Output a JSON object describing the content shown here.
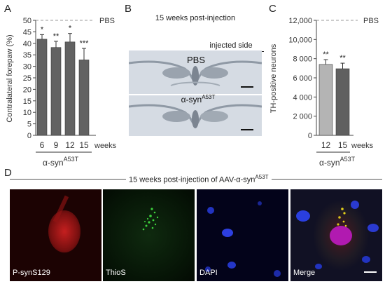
{
  "panel_letters": {
    "a": "A",
    "b": "B",
    "c": "C",
    "d": "D"
  },
  "chart_data": [
    {
      "type": "bar",
      "panel": "A",
      "ylabel": "Contralateral forepaw (%)",
      "ylim": [
        0,
        50
      ],
      "yticks": [
        0,
        5,
        10,
        15,
        20,
        25,
        30,
        35,
        40,
        45,
        50
      ],
      "categories": [
        "6",
        "9",
        "12",
        "15"
      ],
      "values": [
        41.8,
        38.2,
        40.6,
        32.8
      ],
      "errors": [
        2.0,
        2.7,
        3.7,
        5.0
      ],
      "significance": [
        "*",
        "**",
        "*",
        "***"
      ],
      "reference_line": {
        "label": "PBS",
        "value": 50
      },
      "xunit_label": "weeks",
      "group_label": {
        "base": "α-syn",
        "sup": "A53T"
      },
      "bar_color": "#626262"
    },
    {
      "type": "bar",
      "panel": "C",
      "ylabel": "TH-positive neurons",
      "ylim": [
        0,
        12000
      ],
      "yticks": [
        0,
        2000,
        4000,
        6000,
        8000,
        10000,
        12000
      ],
      "ytick_labels": [
        "0",
        "2 000",
        "4 000",
        "6 000",
        "8 000",
        "10,000",
        "12,000"
      ],
      "categories": [
        "12",
        "15"
      ],
      "values": [
        7400,
        6950
      ],
      "errors": [
        500,
        580
      ],
      "significance": [
        "**",
        "**"
      ],
      "reference_line": {
        "label": "PBS",
        "value": 12000
      },
      "xunit_label": "weeks",
      "group_label": {
        "base": "α-syn",
        "sup": "A53T"
      },
      "bar_colors": [
        "#b4b4b4",
        "#606060"
      ]
    }
  ],
  "panel_b": {
    "title": "15 weeks post-injection",
    "injected_side_label": "injected side",
    "top_section_label": "PBS",
    "bottom_section_label": {
      "base": "α-syn",
      "sup": "A53T"
    }
  },
  "panel_d": {
    "title": {
      "base": "15 weeks post-injection of AAV-α-syn",
      "sup": "A53T"
    },
    "tiles": [
      {
        "label": "P-synS129",
        "color": "red"
      },
      {
        "label": "ThioS",
        "color": "green"
      },
      {
        "label": "DAPI",
        "color": "blue"
      },
      {
        "label": "Merge",
        "color": "merge"
      }
    ]
  }
}
